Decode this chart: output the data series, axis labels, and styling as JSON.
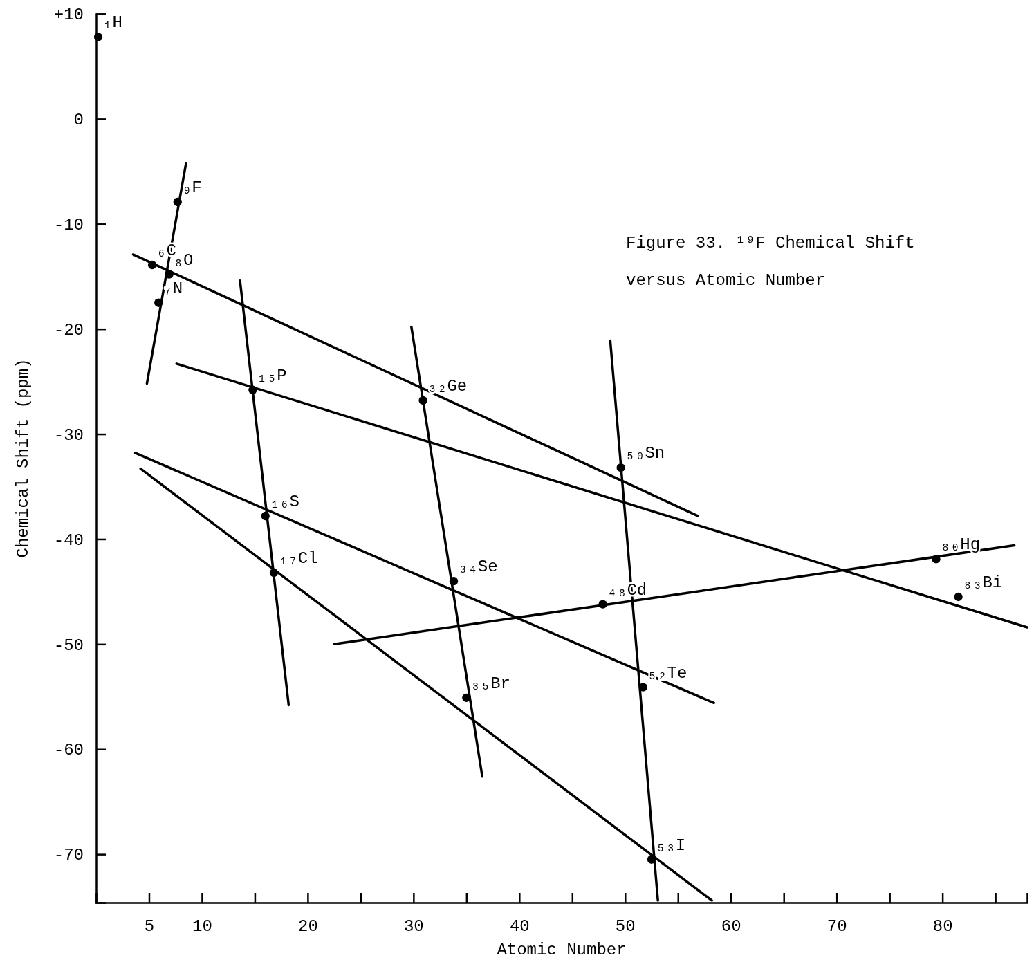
{
  "chart_data": {
    "type": "scatter",
    "title": "Figure 33.  ¹⁹F Chemical Shift versus Atomic Number",
    "xlabel": "Atomic Number",
    "ylabel": "Chemical Shift (ppm)",
    "xlim": [
      0,
      88
    ],
    "ylim": [
      -74.6,
      10
    ],
    "xticks": [
      5,
      10,
      {
        "value": 15,
        "label": null
      },
      20,
      {
        "value": 25,
        "label": null
      },
      30,
      {
        "value": 35,
        "label": null
      },
      40,
      {
        "value": 45,
        "label": null
      },
      50,
      {
        "value": 55,
        "label": null
      },
      60,
      {
        "value": 65,
        "label": null
      },
      70,
      {
        "value": 75,
        "label": null
      },
      80,
      {
        "value": 85,
        "label": null
      }
    ],
    "yticks": [
      {
        "value": 10,
        "label": "+10"
      },
      0,
      -10,
      -20,
      -30,
      -40,
      -50,
      -60,
      -70
    ],
    "series": [
      {
        "color": "#000000",
        "marker": "circle",
        "x": [
          0.2,
          7.7,
          6.9,
          5.3,
          5.9,
          14.8,
          16.0,
          16.8,
          30.9,
          33.8,
          35.0,
          49.6,
          47.9,
          51.7,
          52.5,
          79.4,
          81.5
        ],
        "values": [
          7.8,
          -7.9,
          -14.8,
          -13.9,
          -17.5,
          -25.8,
          -37.8,
          -43.2,
          -26.8,
          -44.0,
          -55.1,
          -33.2,
          -46.2,
          -54.1,
          -70.5,
          -41.9,
          -45.5
        ]
      },
      {
        "type": "line",
        "color": "#000000",
        "x": [
          4.8,
          8.5
        ],
        "values": [
          -25.2,
          -4.2
        ]
      },
      {
        "type": "line",
        "color": "#000000",
        "x": [
          3.5,
          56.9
        ],
        "values": [
          -12.9,
          -37.8
        ]
      },
      {
        "type": "line",
        "color": "#000000",
        "x": [
          7.6,
          88.0
        ],
        "values": [
          -23.3,
          -48.4
        ]
      },
      {
        "type": "line",
        "color": "#000000",
        "x": [
          3.7,
          58.4
        ],
        "values": [
          -31.8,
          -55.6
        ]
      },
      {
        "type": "line",
        "color": "#000000",
        "x": [
          4.2,
          58.2
        ],
        "values": [
          -33.3,
          -74.4
        ]
      },
      {
        "type": "line",
        "color": "#000000",
        "x": [
          13.6,
          18.2
        ],
        "values": [
          -15.4,
          -55.8
        ]
      },
      {
        "type": "line",
        "color": "#000000",
        "x": [
          29.8,
          36.5
        ],
        "values": [
          -19.8,
          -62.6
        ]
      },
      {
        "type": "line",
        "color": "#000000",
        "x": [
          48.6,
          53.1
        ],
        "values": [
          -21.1,
          -74.4
        ]
      },
      {
        "type": "line",
        "color": "#000000",
        "x": [
          22.5,
          86.8
        ],
        "values": [
          -50.0,
          -40.6
        ]
      }
    ],
    "annotations": [
      {
        "text": "₁H",
        "x": 0.2,
        "y": 7.8
      },
      {
        "text": "₉F",
        "x": 7.7,
        "y": -7.9
      },
      {
        "text": "₈O",
        "x": 6.9,
        "y": -14.8
      },
      {
        "text": "₆C",
        "x": 5.3,
        "y": -13.9
      },
      {
        "text": "₇N",
        "x": 5.9,
        "y": -17.5
      },
      {
        "text": "₁₅P",
        "x": 14.8,
        "y": -25.8
      },
      {
        "text": "₁₆S",
        "x": 16.0,
        "y": -37.8
      },
      {
        "text": "₁₇Cl",
        "x": 16.8,
        "y": -43.2
      },
      {
        "text": "₃₂Ge",
        "x": 30.9,
        "y": -26.8
      },
      {
        "text": "₃₄Se",
        "x": 33.8,
        "y": -44.0
      },
      {
        "text": "₃₅Br",
        "x": 35.0,
        "y": -55.1
      },
      {
        "text": "₅₀Sn",
        "x": 49.6,
        "y": -33.2
      },
      {
        "text": "₄₈Cd",
        "x": 47.9,
        "y": -46.2
      },
      {
        "text": "₅₂Te",
        "x": 51.7,
        "y": -54.1
      },
      {
        "text": "₅₃I",
        "x": 52.5,
        "y": -70.5
      },
      {
        "text": "₈₀Hg",
        "x": 79.4,
        "y": -41.9
      },
      {
        "text": "₈₃Bi",
        "x": 81.5,
        "y": -45.5
      }
    ]
  }
}
